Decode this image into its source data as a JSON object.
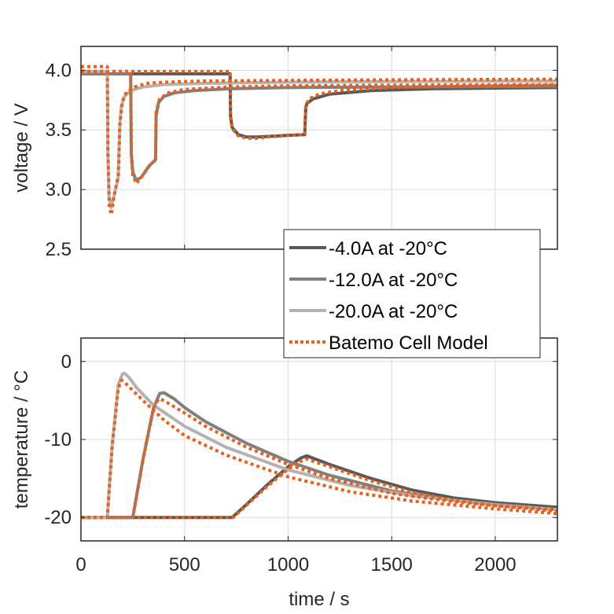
{
  "chart_data": [
    {
      "type": "line",
      "title": "",
      "xlabel": "",
      "ylabel": "voltage / V",
      "xlim": [
        0,
        2300
      ],
      "ylim": [
        2.5,
        4.2
      ],
      "xticks": [
        0,
        500,
        1000,
        1500,
        2000
      ],
      "xtick_labels": [
        "",
        "",
        "",
        "",
        ""
      ],
      "yticks": [
        2.5,
        3.0,
        3.5,
        4.0
      ],
      "ytick_labels": [
        "2.5",
        "3.0",
        "3.5",
        "4.0"
      ],
      "grid": true,
      "series": [
        {
          "name": "-4.0A at -20°C",
          "color": "#595959",
          "style": "solid",
          "x": [
            0,
            720,
            722,
            730,
            760,
            800,
            850,
            900,
            1000,
            1080,
            1085,
            1090,
            1120,
            1200,
            1400,
            1700,
            2000,
            2300
          ],
          "y": [
            3.97,
            3.97,
            3.62,
            3.52,
            3.46,
            3.44,
            3.44,
            3.445,
            3.455,
            3.46,
            3.68,
            3.72,
            3.76,
            3.8,
            3.83,
            3.845,
            3.85,
            3.855
          ]
        },
        {
          "name": "-12.0A at -20°C",
          "color": "#808080",
          "style": "solid",
          "x": [
            0,
            240,
            243,
            250,
            265,
            290,
            330,
            360,
            363,
            375,
            400,
            450,
            550,
            720,
            1000,
            1500,
            2300
          ],
          "y": [
            3.97,
            3.97,
            3.3,
            3.15,
            3.08,
            3.1,
            3.2,
            3.25,
            3.62,
            3.73,
            3.78,
            3.81,
            3.83,
            3.845,
            3.855,
            3.86,
            3.865
          ]
        },
        {
          "name": "-20.0A at -20°C",
          "color": "#b3b3b3",
          "style": "solid",
          "x": [
            0,
            127,
            130,
            135,
            145,
            160,
            180,
            188,
            195,
            210,
            240,
            300,
            400,
            600,
            1000,
            1500,
            2300
          ],
          "y": [
            3.99,
            3.99,
            3.3,
            2.95,
            2.85,
            2.95,
            3.1,
            3.55,
            3.7,
            3.78,
            3.83,
            3.86,
            3.88,
            3.89,
            3.9,
            3.905,
            3.91
          ]
        },
        {
          "name": "Batemo Cell Model",
          "color": "#e8601c",
          "style": "dotted",
          "x": [
            0,
            127,
            130,
            137,
            147,
            160,
            180,
            188,
            200,
            220,
            260,
            320,
            400,
            600,
            1000,
            1500,
            2300
          ],
          "y": [
            4.03,
            4.03,
            3.3,
            2.85,
            2.79,
            2.95,
            3.12,
            3.55,
            3.74,
            3.82,
            3.86,
            3.89,
            3.9,
            3.91,
            3.915,
            3.92,
            3.925
          ]
        },
        {
          "name": "Batemo Cell Model",
          "color": "#e8601c",
          "style": "dotted",
          "legend": false,
          "x": [
            0,
            240,
            243,
            250,
            268,
            290,
            330,
            360,
            363,
            380,
            420,
            500,
            720,
            1000,
            1500,
            2300
          ],
          "y": [
            3.99,
            3.99,
            3.3,
            3.12,
            3.05,
            3.1,
            3.2,
            3.25,
            3.65,
            3.76,
            3.81,
            3.84,
            3.86,
            3.87,
            3.875,
            3.88
          ]
        },
        {
          "name": "Batemo Cell Model",
          "color": "#e8601c",
          "style": "dotted",
          "legend": false,
          "x": [
            0,
            720,
            722,
            730,
            760,
            800,
            850,
            900,
            1000,
            1080,
            1085,
            1100,
            1150,
            1250,
            1500,
            2000,
            2300
          ],
          "y": [
            3.99,
            3.99,
            3.6,
            3.51,
            3.45,
            3.43,
            3.43,
            3.44,
            3.455,
            3.46,
            3.7,
            3.76,
            3.8,
            3.83,
            3.855,
            3.87,
            3.875
          ]
        }
      ],
      "legend": {
        "placement": "bottom-right",
        "entries": [
          "-4.0A at -20°C",
          "-12.0A at -20°C",
          "-20.0A at -20°C",
          "Batemo Cell Model"
        ]
      }
    },
    {
      "type": "line",
      "title": "",
      "xlabel": "time / s",
      "ylabel": "temperature / °C",
      "xlim": [
        0,
        2300
      ],
      "ylim": [
        -23,
        3
      ],
      "xticks": [
        0,
        500,
        1000,
        1500,
        2000
      ],
      "xtick_labels": [
        "0",
        "500",
        "1000",
        "1500",
        "2000"
      ],
      "yticks": [
        -20,
        -10,
        0
      ],
      "ytick_labels": [
        "-20",
        "-10",
        "0"
      ],
      "grid": true,
      "series": [
        {
          "name": "-4.0A at -20°C",
          "color": "#595959",
          "style": "solid",
          "x": [
            0,
            730,
            800,
            900,
            1000,
            1060,
            1090,
            1100,
            1200,
            1400,
            1600,
            1800,
            2000,
            2300
          ],
          "y": [
            -20,
            -20,
            -18.3,
            -15.8,
            -13.5,
            -12.4,
            -12.1,
            -12.2,
            -13.2,
            -15.0,
            -16.5,
            -17.5,
            -18.1,
            -18.7
          ]
        },
        {
          "name": "-12.0A at -20°C",
          "color": "#808080",
          "style": "solid",
          "x": [
            0,
            250,
            300,
            350,
            380,
            400,
            450,
            500,
            600,
            800,
            1000,
            1200,
            1500,
            1800,
            2300
          ],
          "y": [
            -20,
            -20,
            -12.5,
            -6.0,
            -4.1,
            -4.0,
            -4.8,
            -5.9,
            -7.7,
            -10.5,
            -12.8,
            -14.6,
            -16.6,
            -17.8,
            -19.0
          ]
        },
        {
          "name": "-20.0A at -20°C",
          "color": "#b3b3b3",
          "style": "solid",
          "x": [
            0,
            127,
            150,
            180,
            200,
            210,
            230,
            270,
            350,
            500,
            700,
            1000,
            1300,
            1600,
            2000,
            2300
          ],
          "y": [
            -20,
            -20,
            -11,
            -3.0,
            -1.6,
            -1.5,
            -2.0,
            -3.4,
            -5.6,
            -8.3,
            -11.0,
            -13.9,
            -15.9,
            -17.2,
            -18.4,
            -19.0
          ]
        },
        {
          "name": "Batemo Cell Model",
          "color": "#e8601c",
          "style": "dotted",
          "x": [
            0,
            127,
            150,
            180,
            195,
            205,
            230,
            300,
            400,
            500,
            700,
            1000,
            1300,
            1600,
            2000,
            2300
          ],
          "y": [
            -20,
            -20,
            -11,
            -3.5,
            -2.4,
            -2.5,
            -3.2,
            -5.0,
            -7.5,
            -9.5,
            -12.0,
            -14.8,
            -16.7,
            -17.9,
            -18.9,
            -19.5
          ]
        },
        {
          "name": "Batemo Cell Model",
          "color": "#e8601c",
          "style": "dotted",
          "legend": false,
          "x": [
            0,
            250,
            300,
            350,
            375,
            400,
            500,
            600,
            800,
            1000,
            1200,
            1500,
            1800,
            2300
          ],
          "y": [
            -20,
            -20,
            -12.5,
            -6.0,
            -4.8,
            -5.0,
            -6.6,
            -8.3,
            -11.0,
            -13.2,
            -15.0,
            -16.9,
            -18.0,
            -19.2
          ]
        },
        {
          "name": "Batemo Cell Model",
          "color": "#e8601c",
          "style": "dotted",
          "legend": false,
          "x": [
            0,
            735,
            800,
            900,
            1000,
            1060,
            1090,
            1110,
            1200,
            1400,
            1600,
            1800,
            2000,
            2300
          ],
          "y": [
            -20,
            -20,
            -18.4,
            -16.0,
            -13.8,
            -12.8,
            -12.5,
            -12.7,
            -13.5,
            -15.3,
            -16.8,
            -17.8,
            -18.5,
            -19.0
          ]
        }
      ]
    }
  ]
}
